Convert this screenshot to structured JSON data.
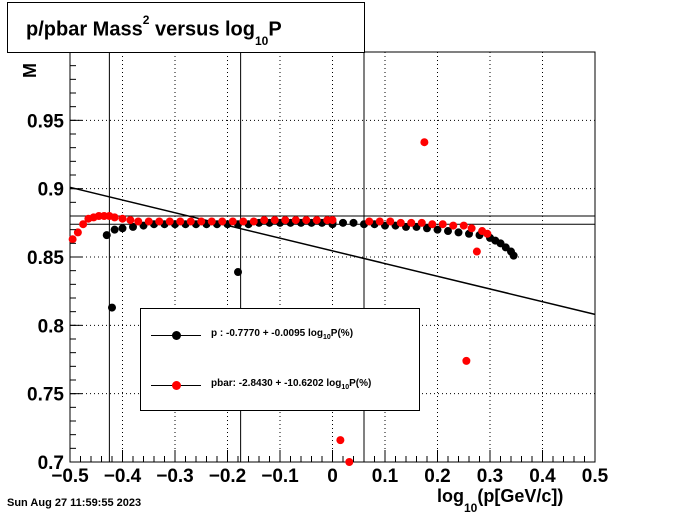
{
  "chart_data": {
    "type": "scatter",
    "title": "p/pbar Mass",
    "title_sup": "2",
    "title_mid": " versus log",
    "title_sub": "10",
    "title_end": "P",
    "xlabel_pre": "log",
    "xlabel_sub": "10",
    "xlabel_post": "(p[GeV/c])",
    "ylabel": "M",
    "xlim": [
      -0.5,
      0.5
    ],
    "ylim": [
      0.7,
      1.0
    ],
    "x_ticks": [
      -0.5,
      -0.4,
      -0.3,
      -0.2,
      -0.1,
      0,
      0.1,
      0.2,
      0.3,
      0.4,
      0.5
    ],
    "x_tick_labels": [
      "−0.5",
      "−0.4",
      "−0.3",
      "−0.2",
      "−0.1",
      "0",
      "0.1",
      "0.2",
      "0.3",
      "0.4",
      "0.5"
    ],
    "y_ticks": [
      0.7,
      0.75,
      0.8,
      0.85,
      0.9,
      0.95
    ],
    "y_tick_labels": [
      "0.7",
      "0.75",
      "0.8",
      "0.85",
      "0.9",
      "0.95"
    ],
    "grid": true,
    "vertical_lines": [
      -0.425,
      -0.175,
      0.06
    ],
    "horizontal_lines": [
      0.88,
      0.874
    ],
    "fit_line": {
      "x": [
        -0.5,
        0.5
      ],
      "y": [
        0.901,
        0.808
      ]
    },
    "series": [
      {
        "name": "p",
        "color": "#000000",
        "points": [
          [
            -0.43,
            0.866
          ],
          [
            -0.42,
            0.813
          ],
          [
            -0.18,
            0.839
          ],
          [
            0.0,
            0.874
          ],
          [
            -0.415,
            0.87
          ],
          [
            -0.4,
            0.871
          ],
          [
            -0.38,
            0.872
          ],
          [
            -0.36,
            0.873
          ],
          [
            -0.34,
            0.874
          ],
          [
            -0.32,
            0.874
          ],
          [
            -0.3,
            0.874
          ],
          [
            -0.28,
            0.874
          ],
          [
            -0.26,
            0.874
          ],
          [
            -0.24,
            0.874
          ],
          [
            -0.22,
            0.874
          ],
          [
            -0.2,
            0.874
          ],
          [
            -0.18,
            0.874
          ],
          [
            -0.16,
            0.874
          ],
          [
            -0.14,
            0.875
          ],
          [
            -0.12,
            0.875
          ],
          [
            -0.1,
            0.875
          ],
          [
            -0.08,
            0.875
          ],
          [
            -0.06,
            0.875
          ],
          [
            -0.04,
            0.875
          ],
          [
            -0.02,
            0.875
          ],
          [
            0.0,
            0.875
          ],
          [
            0.02,
            0.875
          ],
          [
            0.04,
            0.875
          ],
          [
            0.06,
            0.874
          ],
          [
            0.08,
            0.874
          ],
          [
            0.1,
            0.873
          ],
          [
            0.12,
            0.873
          ],
          [
            0.14,
            0.872
          ],
          [
            0.16,
            0.872
          ],
          [
            0.18,
            0.871
          ],
          [
            0.2,
            0.87
          ],
          [
            0.22,
            0.869
          ],
          [
            0.24,
            0.868
          ],
          [
            0.26,
            0.867
          ],
          [
            0.28,
            0.866
          ],
          [
            0.3,
            0.864
          ],
          [
            0.31,
            0.862
          ],
          [
            0.32,
            0.86
          ],
          [
            0.33,
            0.857
          ],
          [
            0.34,
            0.854
          ],
          [
            0.345,
            0.851
          ]
        ]
      },
      {
        "name": "pbar",
        "color": "#ff0000",
        "points": [
          [
            -0.495,
            0.863
          ],
          [
            -0.485,
            0.868
          ],
          [
            -0.475,
            0.874
          ],
          [
            -0.465,
            0.878
          ],
          [
            -0.455,
            0.879
          ],
          [
            -0.445,
            0.88
          ],
          [
            -0.435,
            0.88
          ],
          [
            -0.425,
            0.88
          ],
          [
            -0.415,
            0.879
          ],
          [
            -0.4,
            0.878
          ],
          [
            -0.385,
            0.877
          ],
          [
            -0.37,
            0.876
          ],
          [
            -0.35,
            0.876
          ],
          [
            -0.33,
            0.876
          ],
          [
            -0.31,
            0.876
          ],
          [
            -0.29,
            0.876
          ],
          [
            -0.27,
            0.876
          ],
          [
            -0.25,
            0.876
          ],
          [
            -0.23,
            0.876
          ],
          [
            -0.21,
            0.876
          ],
          [
            -0.19,
            0.876
          ],
          [
            -0.17,
            0.876
          ],
          [
            -0.15,
            0.876
          ],
          [
            -0.13,
            0.877
          ],
          [
            -0.11,
            0.877
          ],
          [
            -0.09,
            0.877
          ],
          [
            -0.07,
            0.877
          ],
          [
            -0.05,
            0.877
          ],
          [
            -0.03,
            0.877
          ],
          [
            -0.01,
            0.877
          ],
          [
            0.0,
            0.877
          ],
          [
            0.07,
            0.876
          ],
          [
            0.09,
            0.876
          ],
          [
            0.11,
            0.876
          ],
          [
            0.13,
            0.875
          ],
          [
            0.15,
            0.875
          ],
          [
            0.17,
            0.875
          ],
          [
            0.19,
            0.874
          ],
          [
            0.21,
            0.874
          ],
          [
            0.23,
            0.873
          ],
          [
            0.25,
            0.873
          ],
          [
            0.265,
            0.871
          ],
          [
            0.285,
            0.869
          ],
          [
            0.295,
            0.867
          ],
          [
            0.175,
            0.934
          ],
          [
            0.275,
            0.854
          ],
          [
            0.255,
            0.774
          ],
          [
            0.015,
            0.716
          ],
          [
            0.032,
            0.7
          ]
        ]
      }
    ],
    "legend": [
      {
        "label": "p  : -0.7770 + -0.0095 log",
        "sub": "10",
        "suffix": "P(%)",
        "color": "#000000"
      },
      {
        "label": "pbar: -2.8430 + -10.6202 log",
        "sub": "10",
        "suffix": "P(%)",
        "color": "#ff0000"
      }
    ],
    "legend_placement": "lower-left inside plot"
  },
  "timestamp": "Sun Aug 27 11:59:55 2023"
}
